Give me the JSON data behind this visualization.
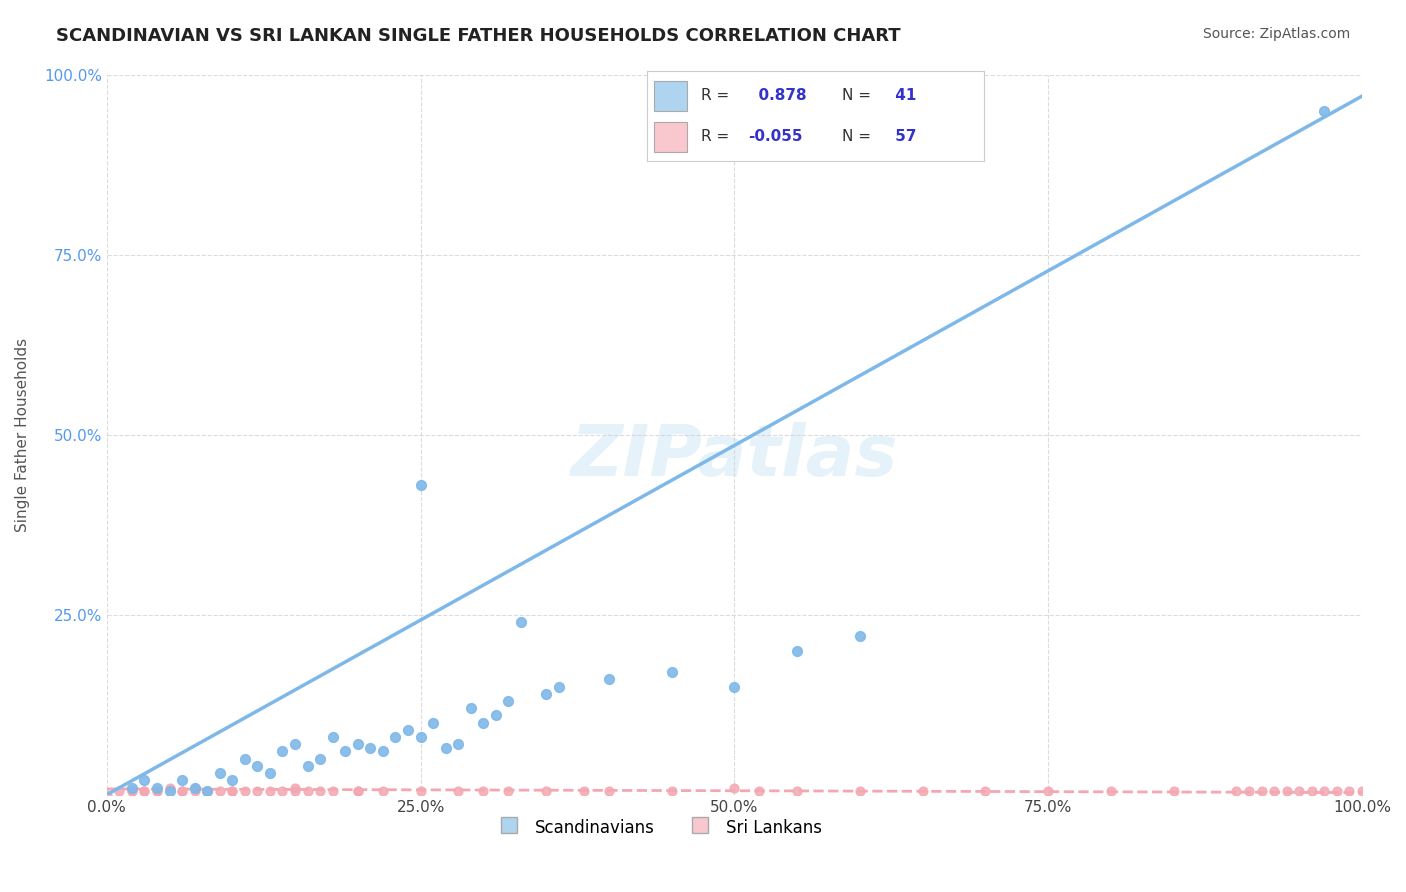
{
  "title": "SCANDINAVIAN VS SRI LANKAN SINGLE FATHER HOUSEHOLDS CORRELATION CHART",
  "source": "Source: ZipAtlas.com",
  "xlabel": "",
  "ylabel": "Single Father Households",
  "xlim": [
    0,
    1.0
  ],
  "ylim": [
    0,
    1.0
  ],
  "xtick_labels": [
    "0.0%",
    "25.0%",
    "50.0%",
    "75.0%",
    "100.0%"
  ],
  "xtick_vals": [
    0.0,
    0.25,
    0.5,
    0.75,
    1.0
  ],
  "ytick_labels": [
    "",
    "25.0%",
    "50.0%",
    "75.0%",
    "100.0%"
  ],
  "ytick_vals": [
    0.0,
    0.25,
    0.5,
    0.75,
    1.0
  ],
  "scandinavian_color": "#7EB8E8",
  "sri_lankan_color": "#F4A7B0",
  "legend_scand_face": "#AED4F0",
  "legend_sril_face": "#F9C8CE",
  "r_scand": 0.878,
  "n_scand": 41,
  "r_sril": -0.055,
  "n_sril": 57,
  "watermark": "ZIPatlas",
  "background_color": "#ffffff",
  "grid_color": "#cccccc",
  "legend_r_color": "#3333cc",
  "scand_scatter": [
    [
      0.02,
      0.01
    ],
    [
      0.03,
      0.02
    ],
    [
      0.04,
      0.01
    ],
    [
      0.05,
      0.005
    ],
    [
      0.06,
      0.02
    ],
    [
      0.07,
      0.01
    ],
    [
      0.08,
      0.005
    ],
    [
      0.09,
      0.03
    ],
    [
      0.1,
      0.02
    ],
    [
      0.11,
      0.05
    ],
    [
      0.12,
      0.04
    ],
    [
      0.13,
      0.03
    ],
    [
      0.14,
      0.06
    ],
    [
      0.15,
      0.07
    ],
    [
      0.16,
      0.04
    ],
    [
      0.17,
      0.05
    ],
    [
      0.18,
      0.08
    ],
    [
      0.19,
      0.06
    ],
    [
      0.2,
      0.07
    ],
    [
      0.21,
      0.065
    ],
    [
      0.22,
      0.06
    ],
    [
      0.23,
      0.08
    ],
    [
      0.24,
      0.09
    ],
    [
      0.25,
      0.08
    ],
    [
      0.26,
      0.1
    ],
    [
      0.27,
      0.065
    ],
    [
      0.28,
      0.07
    ],
    [
      0.29,
      0.12
    ],
    [
      0.3,
      0.1
    ],
    [
      0.31,
      0.11
    ],
    [
      0.32,
      0.13
    ],
    [
      0.33,
      0.24
    ],
    [
      0.35,
      0.14
    ],
    [
      0.36,
      0.15
    ],
    [
      0.4,
      0.16
    ],
    [
      0.45,
      0.17
    ],
    [
      0.5,
      0.15
    ],
    [
      0.55,
      0.2
    ],
    [
      0.6,
      0.22
    ],
    [
      0.97,
      0.95
    ],
    [
      0.25,
      0.43
    ]
  ],
  "sri_lankan_scatter": [
    [
      0.0,
      0.0
    ],
    [
      0.01,
      0.005
    ],
    [
      0.02,
      0.005
    ],
    [
      0.03,
      0.005
    ],
    [
      0.04,
      0.005
    ],
    [
      0.05,
      0.01
    ],
    [
      0.06,
      0.005
    ],
    [
      0.07,
      0.01
    ],
    [
      0.08,
      0.005
    ],
    [
      0.09,
      0.005
    ],
    [
      0.1,
      0.005
    ],
    [
      0.11,
      0.005
    ],
    [
      0.12,
      0.005
    ],
    [
      0.13,
      0.005
    ],
    [
      0.14,
      0.005
    ],
    [
      0.15,
      0.01
    ],
    [
      0.16,
      0.005
    ],
    [
      0.17,
      0.005
    ],
    [
      0.18,
      0.005
    ],
    [
      0.2,
      0.005
    ],
    [
      0.22,
      0.005
    ],
    [
      0.25,
      0.005
    ],
    [
      0.28,
      0.005
    ],
    [
      0.3,
      0.005
    ],
    [
      0.32,
      0.005
    ],
    [
      0.35,
      0.005
    ],
    [
      0.38,
      0.005
    ],
    [
      0.4,
      0.005
    ],
    [
      0.45,
      0.005
    ],
    [
      0.5,
      0.01
    ],
    [
      0.52,
      0.005
    ],
    [
      0.55,
      0.005
    ],
    [
      0.6,
      0.005
    ],
    [
      0.65,
      0.005
    ],
    [
      0.7,
      0.005
    ],
    [
      0.75,
      0.005
    ],
    [
      0.8,
      0.005
    ],
    [
      0.85,
      0.005
    ],
    [
      0.9,
      0.005
    ],
    [
      0.91,
      0.005
    ],
    [
      0.92,
      0.005
    ],
    [
      0.93,
      0.005
    ],
    [
      0.94,
      0.005
    ],
    [
      0.95,
      0.005
    ],
    [
      0.96,
      0.005
    ],
    [
      0.97,
      0.005
    ],
    [
      0.98,
      0.005
    ],
    [
      0.99,
      0.005
    ],
    [
      1.0,
      0.005
    ],
    [
      0.02,
      0.005
    ],
    [
      0.03,
      0.005
    ],
    [
      0.04,
      0.005
    ],
    [
      0.06,
      0.005
    ],
    [
      0.07,
      0.005
    ],
    [
      0.1,
      0.005
    ],
    [
      0.15,
      0.005
    ],
    [
      0.2,
      0.005
    ]
  ]
}
